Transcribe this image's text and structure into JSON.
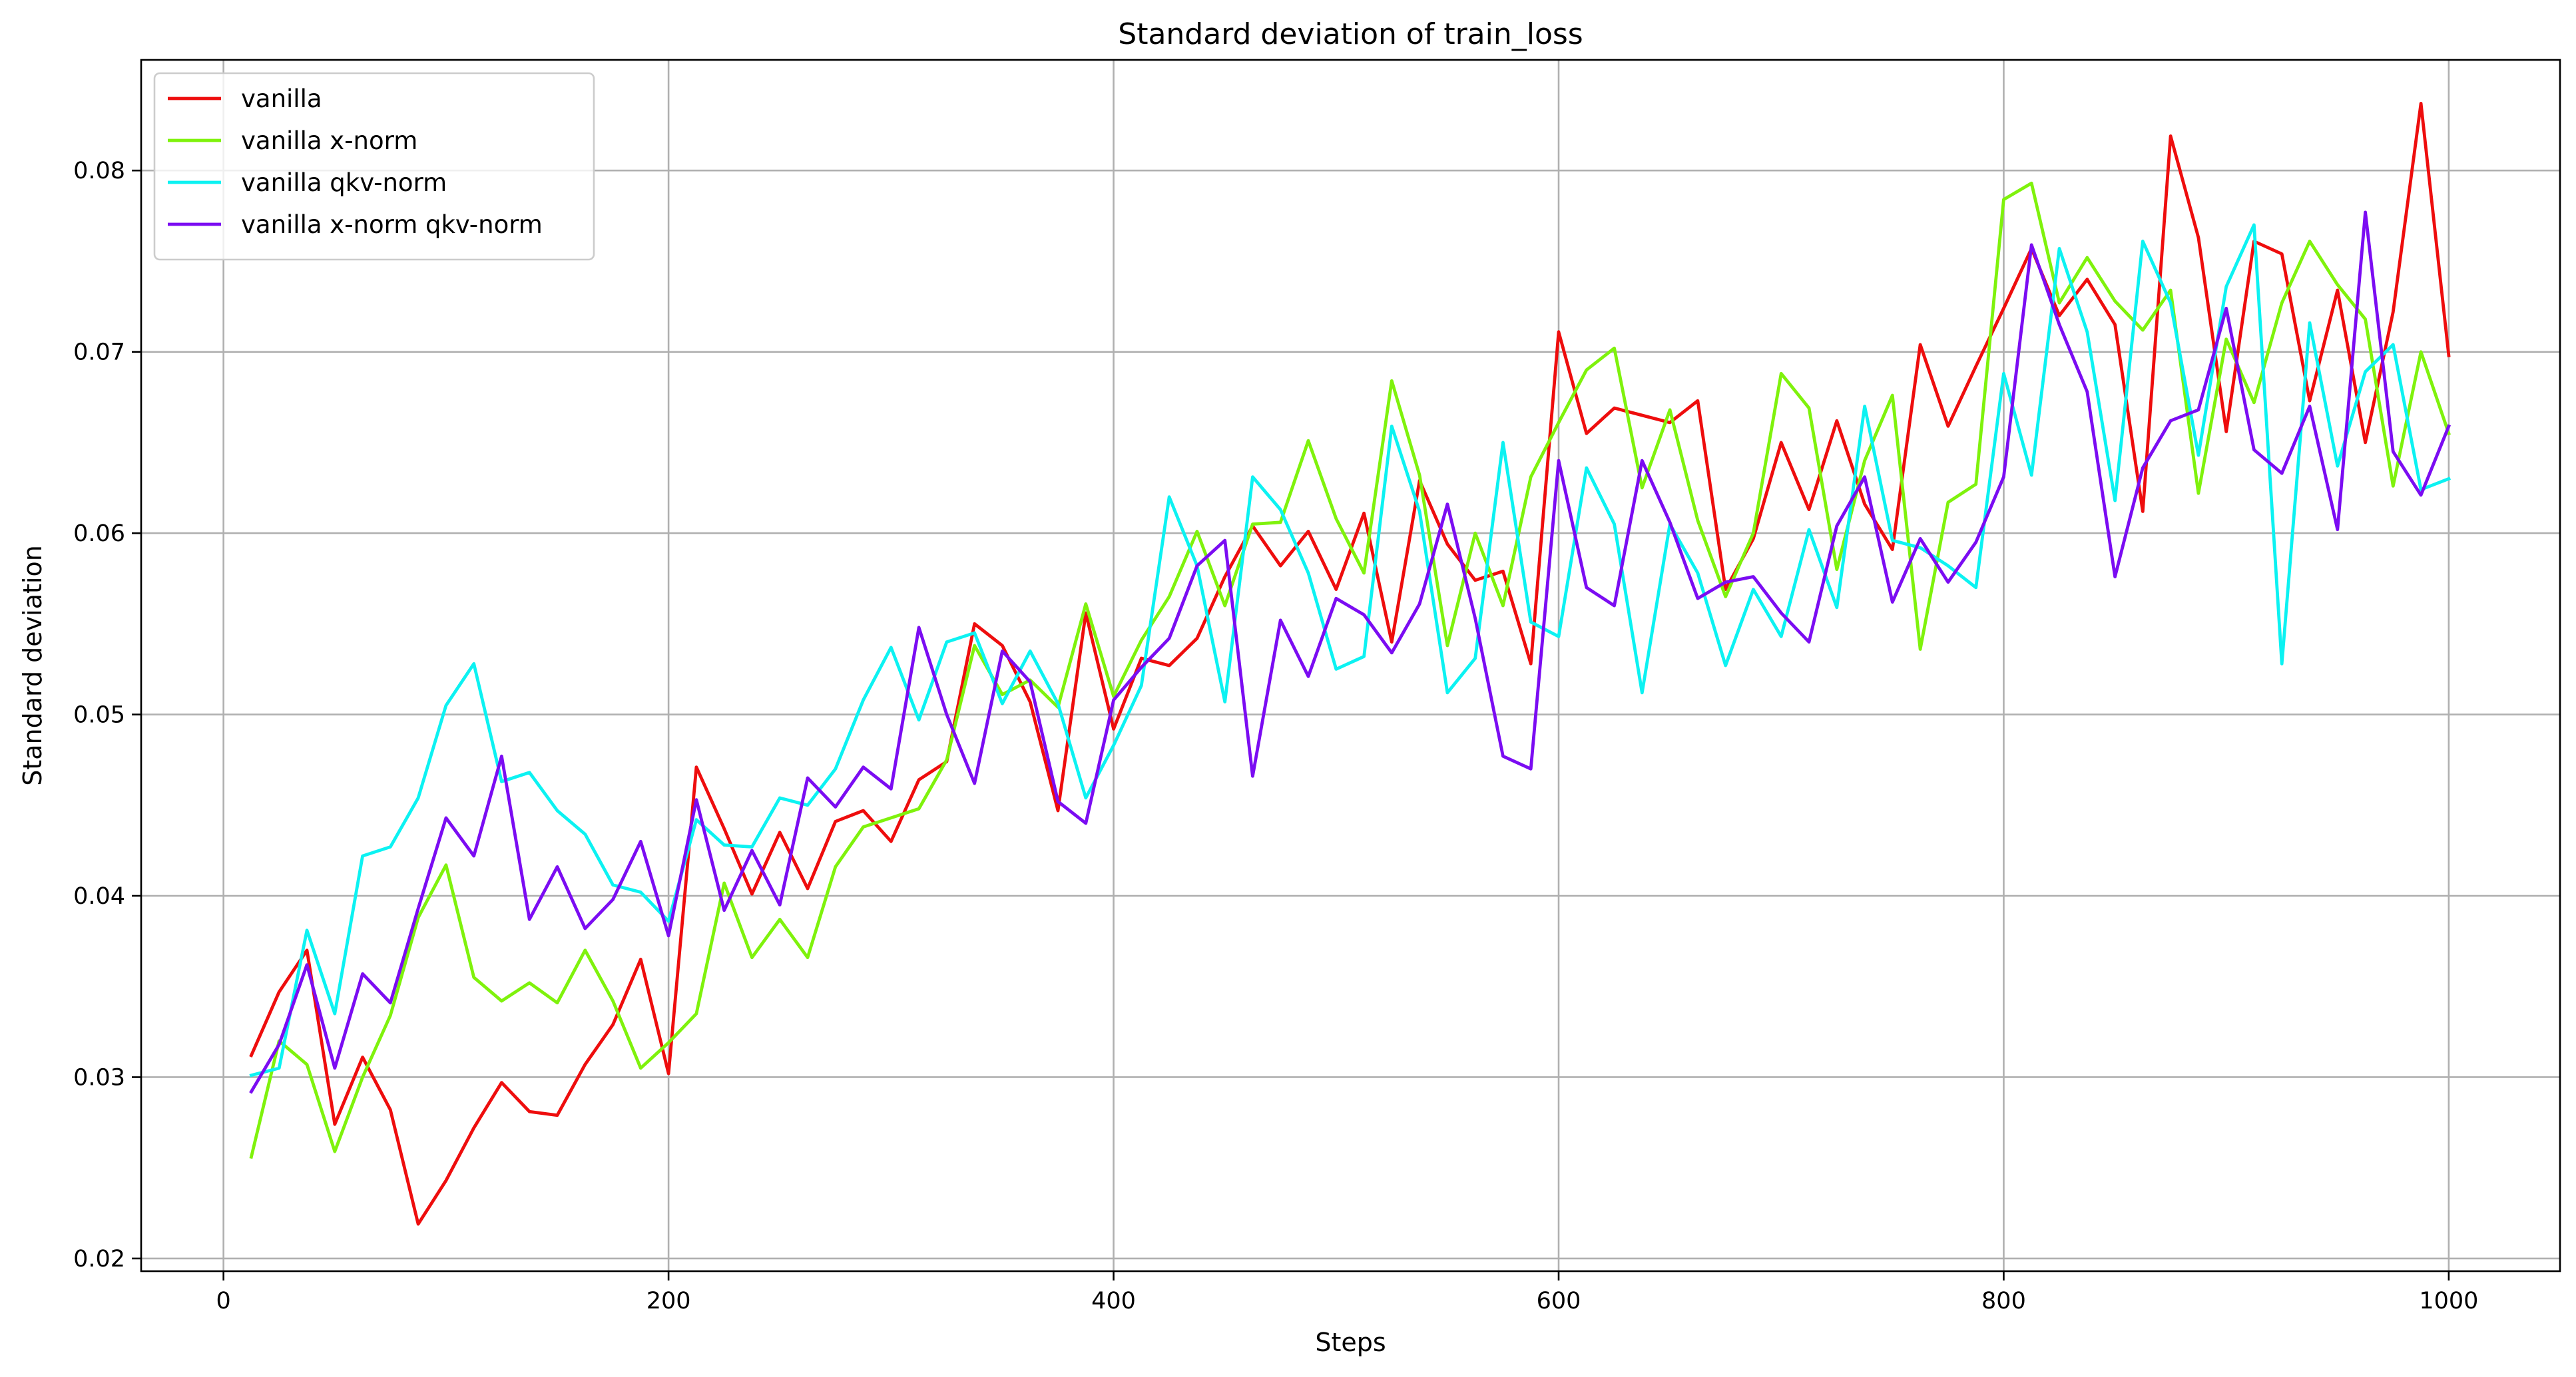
{
  "chart_data": {
    "type": "line",
    "title": "Standard deviation of train_loss",
    "xlabel": "Steps",
    "ylabel": "Standard deviation",
    "xlim": [
      -37,
      1050
    ],
    "ylim": [
      0.0193,
      0.0861
    ],
    "xticks": [
      0,
      200,
      400,
      600,
      800,
      1000
    ],
    "xtick_labels": [
      "0",
      "200",
      "400",
      "600",
      "800",
      "1000"
    ],
    "yticks": [
      0.02,
      0.03,
      0.04,
      0.05,
      0.06,
      0.07,
      0.08
    ],
    "ytick_labels": [
      "0.02",
      "0.03",
      "0.04",
      "0.05",
      "0.06",
      "0.07",
      "0.08"
    ],
    "grid": true,
    "legend_position": "upper-left",
    "x": [
      12.5,
      25,
      37.5,
      50,
      62.5,
      75,
      87.5,
      100,
      112.5,
      125,
      137.5,
      150,
      162.5,
      175,
      187.5,
      200,
      212.5,
      225,
      237.5,
      250,
      262.5,
      275,
      287.5,
      300,
      312.5,
      325,
      337.5,
      350,
      362.5,
      375,
      387.5,
      400,
      412.5,
      425,
      437.5,
      450,
      462.5,
      475,
      487.5,
      500,
      512.5,
      525,
      537.5,
      550,
      562.5,
      575,
      587.5,
      600,
      612.5,
      625,
      637.5,
      650,
      662.5,
      675,
      687.5,
      700,
      712.5,
      725,
      737.5,
      750,
      762.5,
      775,
      787.5,
      800,
      812.5,
      825,
      837.5,
      850,
      862.5,
      875,
      887.5,
      900,
      912.5,
      925,
      937.5,
      950,
      962.5,
      975,
      987.5,
      1000
    ],
    "series": [
      {
        "name": "vanilla",
        "color": "#ee0d0d",
        "values": [
          0.0312,
          0.0347,
          0.037,
          0.0274,
          0.0311,
          0.0282,
          0.0219,
          0.0243,
          0.0272,
          0.0297,
          0.0281,
          0.0279,
          0.0307,
          0.0329,
          0.0365,
          0.0302,
          0.0471,
          0.0437,
          0.0401,
          0.0435,
          0.0404,
          0.0441,
          0.0447,
          0.043,
          0.0464,
          0.0474,
          0.055,
          0.0538,
          0.0507,
          0.0447,
          0.0556,
          0.0492,
          0.0531,
          0.0527,
          0.0542,
          0.0576,
          0.0604,
          0.0582,
          0.0601,
          0.0569,
          0.0611,
          0.054,
          0.0629,
          0.0594,
          0.0574,
          0.0579,
          0.0528,
          0.0711,
          0.0655,
          0.0669,
          0.0665,
          0.0661,
          0.0673,
          0.0569,
          0.0597,
          0.065,
          0.0613,
          0.0662,
          0.0616,
          0.0591,
          0.0704,
          0.0659,
          0.0692,
          0.0724,
          0.0757,
          0.072,
          0.074,
          0.0715,
          0.0612,
          0.0819,
          0.0763,
          0.0656,
          0.0761,
          0.0754,
          0.0673,
          0.0734,
          0.065,
          0.0722,
          0.0837,
          0.0698
        ]
      },
      {
        "name": "vanilla x-norm",
        "color": "#7ff20c",
        "values": [
          0.0256,
          0.032,
          0.0307,
          0.0259,
          0.03,
          0.0334,
          0.0388,
          0.0417,
          0.0355,
          0.0342,
          0.0352,
          0.0341,
          0.037,
          0.0342,
          0.0305,
          0.0319,
          0.0335,
          0.0407,
          0.0366,
          0.0387,
          0.0366,
          0.0416,
          0.0438,
          0.0443,
          0.0448,
          0.0475,
          0.0538,
          0.0511,
          0.0519,
          0.0504,
          0.0561,
          0.051,
          0.0541,
          0.0565,
          0.0601,
          0.056,
          0.0605,
          0.0606,
          0.0651,
          0.0608,
          0.0578,
          0.0684,
          0.0632,
          0.0538,
          0.06,
          0.056,
          0.0631,
          0.0661,
          0.069,
          0.0702,
          0.0625,
          0.0668,
          0.0607,
          0.0565,
          0.06,
          0.0688,
          0.0669,
          0.058,
          0.064,
          0.0676,
          0.0536,
          0.0617,
          0.0627,
          0.0784,
          0.0793,
          0.0727,
          0.0752,
          0.0728,
          0.0712,
          0.0734,
          0.0622,
          0.0707,
          0.0672,
          0.0727,
          0.0761,
          0.0737,
          0.0718,
          0.0626,
          0.07,
          0.0655
        ]
      },
      {
        "name": "vanilla qkv-norm",
        "color": "#0cf2f2",
        "values": [
          0.0301,
          0.0305,
          0.0381,
          0.0335,
          0.0422,
          0.0427,
          0.0454,
          0.0505,
          0.0528,
          0.0463,
          0.0468,
          0.0447,
          0.0434,
          0.0406,
          0.0402,
          0.0386,
          0.0442,
          0.0428,
          0.0427,
          0.0454,
          0.045,
          0.047,
          0.0508,
          0.0537,
          0.0497,
          0.054,
          0.0545,
          0.0506,
          0.0535,
          0.0506,
          0.0454,
          0.0483,
          0.0516,
          0.062,
          0.0582,
          0.0507,
          0.0631,
          0.0613,
          0.0578,
          0.0525,
          0.0532,
          0.0659,
          0.0612,
          0.0512,
          0.0531,
          0.065,
          0.0551,
          0.0543,
          0.0636,
          0.0605,
          0.0512,
          0.0605,
          0.0578,
          0.0527,
          0.0569,
          0.0543,
          0.0602,
          0.0559,
          0.067,
          0.0596,
          0.0592,
          0.0582,
          0.057,
          0.0688,
          0.0632,
          0.0757,
          0.0711,
          0.0618,
          0.0761,
          0.0727,
          0.0643,
          0.0736,
          0.077,
          0.0528,
          0.0716,
          0.0637,
          0.0689,
          0.0704,
          0.0624,
          0.063
        ]
      },
      {
        "name": "vanilla x-norm qkv-norm",
        "color": "#7b0cf2",
        "values": [
          0.0292,
          0.0318,
          0.0362,
          0.0305,
          0.0357,
          0.0341,
          0.0393,
          0.0443,
          0.0422,
          0.0477,
          0.0387,
          0.0416,
          0.0382,
          0.0398,
          0.043,
          0.0378,
          0.0453,
          0.0392,
          0.0425,
          0.0395,
          0.0465,
          0.0449,
          0.0471,
          0.0459,
          0.0548,
          0.05,
          0.0462,
          0.0535,
          0.0518,
          0.0452,
          0.044,
          0.0508,
          0.0526,
          0.0542,
          0.0582,
          0.0596,
          0.0466,
          0.0552,
          0.0521,
          0.0564,
          0.0555,
          0.0534,
          0.0561,
          0.0616,
          0.0553,
          0.0477,
          0.047,
          0.064,
          0.057,
          0.056,
          0.064,
          0.0606,
          0.0564,
          0.0573,
          0.0576,
          0.0556,
          0.054,
          0.0604,
          0.0631,
          0.0562,
          0.0597,
          0.0573,
          0.0595,
          0.0631,
          0.0759,
          0.0715,
          0.0678,
          0.0576,
          0.0636,
          0.0662,
          0.0668,
          0.0724,
          0.0646,
          0.0633,
          0.067,
          0.0602,
          0.0777,
          0.0645,
          0.0621,
          0.0659
        ]
      }
    ]
  }
}
